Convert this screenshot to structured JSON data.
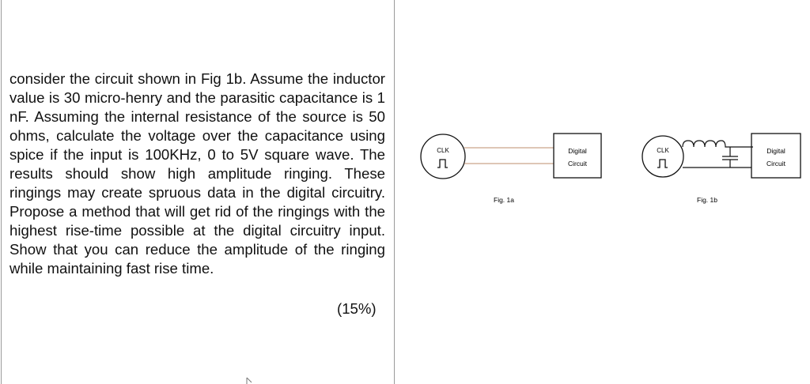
{
  "question": {
    "text": "consider the circuit shown in Fig 1b. Assume the inductor value is 30 micro-henry and the parasitic capacitance is 1 nF. Assuming the internal resistance of the source is 50 ohms, calculate the voltage over the capacitance using spice if the input is 100KHz, 0 to 5V square wave. The results should show high amplitude ringing. These ringings may create spruous data in the digital circuitry. Propose a method that will get rid of the ringings with the highest rise-time possible at the digital circuitry input. Show that you can reduce the amplitude of the ringing while maintaining fast rise time.",
    "marks": "(15%)"
  },
  "fig1a": {
    "source_label": "CLK",
    "box_line1": "Digital",
    "box_line2": "Circuit",
    "caption": "Fig. 1a",
    "wire_color": "#c9a58a"
  },
  "fig1b": {
    "source_label": "CLK",
    "box_line1": "Digital",
    "box_line2": "Circuit",
    "caption": "Fig. 1b"
  }
}
